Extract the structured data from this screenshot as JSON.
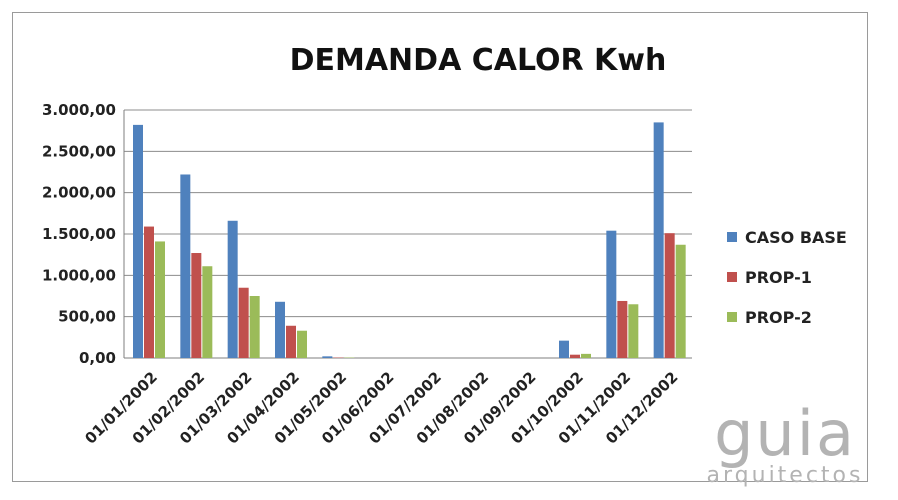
{
  "chart_data": {
    "type": "bar",
    "title": "DEMANDA CALOR Kwh",
    "xlabel": "",
    "ylabel": "",
    "ylim": [
      0,
      3000
    ],
    "yticks": [
      "0,00",
      "500,00",
      "1.000,00",
      "1.500,00",
      "2.000,00",
      "2.500,00",
      "3.000,00"
    ],
    "ytick_values": [
      0,
      500,
      1000,
      1500,
      2000,
      2500,
      3000
    ],
    "grid": true,
    "legend_position": "right",
    "categories": [
      "01/01/2002",
      "01/02/2002",
      "01/03/2002",
      "01/04/2002",
      "01/05/2002",
      "01/06/2002",
      "01/07/2002",
      "01/08/2002",
      "01/09/2002",
      "01/10/2002",
      "01/11/2002",
      "01/12/2002"
    ],
    "series": [
      {
        "name": "CASO BASE",
        "color": "#4f81bd",
        "values": [
          2820,
          2220,
          1660,
          680,
          20,
          0,
          0,
          0,
          0,
          210,
          1540,
          2850
        ]
      },
      {
        "name": "PROP-1",
        "color": "#c0504d",
        "values": [
          1590,
          1270,
          850,
          390,
          5,
          0,
          0,
          0,
          0,
          40,
          690,
          1510
        ]
      },
      {
        "name": "PROP-2",
        "color": "#9bbb59",
        "values": [
          1410,
          1110,
          750,
          330,
          5,
          0,
          0,
          0,
          0,
          50,
          650,
          1370
        ]
      }
    ]
  },
  "watermark": {
    "logo": "guia",
    "sub": "arquitectos"
  }
}
